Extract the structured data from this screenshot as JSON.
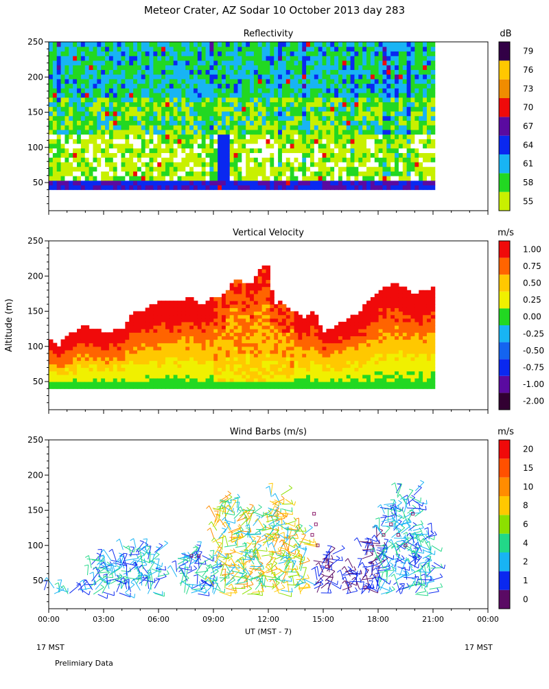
{
  "page": {
    "title": "Meteor Crater, AZ   Sodar   10 October 2013   day 283",
    "footnote": "Prelimiary Data",
    "left_corner": "17 MST",
    "right_corner": "17 MST"
  },
  "chart_data": [
    {
      "type": "heatmap",
      "title": "Reflectivity",
      "ylabel": "",
      "ylim": [
        10,
        250
      ],
      "yticks": [
        50,
        100,
        150,
        200,
        250
      ],
      "xlim": [
        0,
        24
      ],
      "data_extent_hours": [
        0,
        21.1
      ],
      "data_extent_altitude": [
        40,
        250
      ],
      "colorbar": {
        "unit": "dB",
        "levels": [
          "55",
          "58",
          "61",
          "64",
          "67",
          "70",
          "73",
          "76",
          "79"
        ],
        "colors": [
          "#c8f000",
          "#22d822",
          "#18b4f4",
          "#0a28f0",
          "#5a0aa0",
          "#f00a0a",
          "#f08c00",
          "#ffc800",
          "#320046"
        ]
      },
      "field_colors": [
        "#ffffff",
        "#c8f000",
        "#22d822",
        "#18b4f4",
        "#0a28f0",
        "#5a0aa0",
        "#f00a0a"
      ]
    },
    {
      "type": "heatmap",
      "title": "Vertical Velocity",
      "ylabel": "Altitude (m)",
      "ylim": [
        10,
        250
      ],
      "yticks": [
        50,
        100,
        150,
        200,
        250
      ],
      "xlim": [
        0,
        24
      ],
      "colorbar": {
        "unit": "m/s",
        "levels": [
          "-2.00",
          "-1.00",
          "-0.75",
          "-0.50",
          "-0.25",
          "0.00",
          "0.25",
          "0.50",
          "0.75",
          "1.00"
        ],
        "colors": [
          "#320032",
          "#5a0aa0",
          "#0a28f0",
          "#1464f0",
          "#18b4f4",
          "#22d822",
          "#f0f000",
          "#ffc800",
          "#ff6400",
          "#f00a0a"
        ]
      },
      "top_profile": {
        "hours": [
          0,
          0.5,
          1,
          2,
          3,
          4,
          4.7,
          5,
          6,
          7,
          7.8,
          8.3,
          9,
          9.4,
          9.8,
          10.3,
          11,
          11.6,
          12,
          12.3,
          12.6,
          13,
          13.5,
          14,
          14.5,
          15,
          16,
          17,
          18,
          19,
          20,
          21.1
        ],
        "altitude": [
          110,
          100,
          115,
          130,
          120,
          125,
          150,
          150,
          165,
          165,
          170,
          160,
          170,
          170,
          180,
          200,
          185,
          215,
          215,
          160,
          165,
          155,
          150,
          140,
          155,
          120,
          135,
          150,
          180,
          190,
          175,
          185
        ]
      },
      "band_levels": [
        "0.00",
        "0.25",
        "0.50",
        "0.75",
        "1.00"
      ],
      "band_colors": [
        "#22d822",
        "#f0f000",
        "#ffc800",
        "#ff6400",
        "#f00a0a"
      ]
    },
    {
      "type": "scatter",
      "title": "Wind Barbs (m/s)",
      "ylabel": "",
      "ylim": [
        10,
        250
      ],
      "yticks": [
        50,
        100,
        150,
        200,
        250
      ],
      "xlim": [
        0,
        24
      ],
      "colorbar": {
        "unit": "m/s",
        "levels": [
          "0",
          "1",
          "2",
          "4",
          "6",
          "8",
          "10",
          "15",
          "20"
        ],
        "colors": [
          "#5a0a64",
          "#0a28f0",
          "#18b4f4",
          "#22d888",
          "#8ce000",
          "#ffc800",
          "#ff8c00",
          "#ff5000",
          "#f00a0a"
        ]
      },
      "barb_profile": {
        "hours": [
          0.3,
          1.5,
          2.5,
          3.5,
          4.5,
          5.5,
          7.5,
          8.5,
          9.5,
          10.5,
          11.5,
          12.5,
          13.5,
          15,
          16.5,
          17.5,
          18.5,
          19.5,
          20.5
        ],
        "top_altitude": [
          40,
          40,
          80,
          80,
          100,
          90,
          85,
          85,
          165,
          150,
          145,
          170,
          120,
          85,
          70,
          110,
          160,
          175,
          115
        ]
      },
      "calm_points": {
        "hours": [
          7.8,
          8.2,
          14.5,
          14.6,
          14.4,
          14.7,
          15.2,
          17.3,
          18.3,
          18.7,
          19.1,
          19.5,
          19.9
        ],
        "altitude": [
          85,
          85,
          145,
          130,
          115,
          100,
          70,
          40,
          115,
          130,
          115,
          100,
          145
        ]
      }
    }
  ],
  "x_axis": {
    "ticks": [
      "00:00",
      "03:00",
      "06:00",
      "09:00",
      "12:00",
      "15:00",
      "18:00",
      "21:00",
      "00:00"
    ],
    "tick_hours": [
      0,
      3,
      6,
      9,
      12,
      15,
      18,
      21,
      24
    ],
    "label": "UT  (MST - 7)"
  }
}
